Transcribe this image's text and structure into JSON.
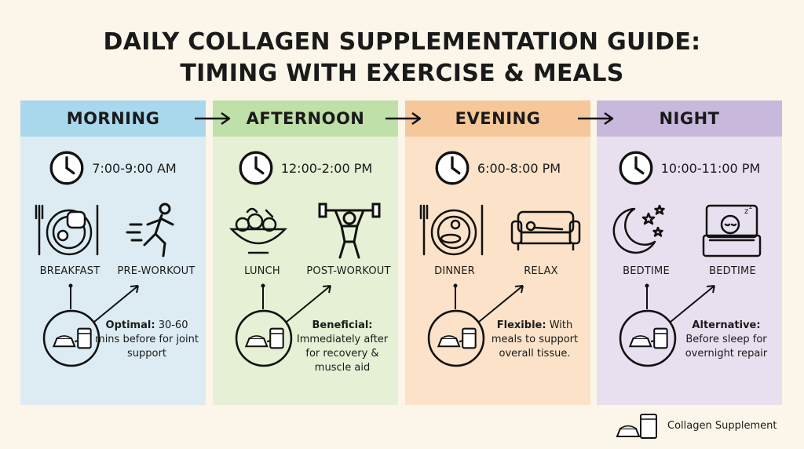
{
  "title": {
    "line1": "DAILY COLLAGEN SUPPLEMENTATION GUIDE:",
    "line2": "TIMING WITH EXERCISE & MEALS"
  },
  "panels": [
    {
      "heading": "MORNING",
      "time": "7:00-9:00 AM",
      "label_left": "BREAKFAST",
      "label_right": "PRE-WORKOUT",
      "note_bold": "Optimal:",
      "note_rest": "30-60 mins before for joint support",
      "header_color": "#a9d7ec",
      "body_color": "#dcecf2",
      "icon_left": "breakfast-icon",
      "icon_right": "running-person-icon"
    },
    {
      "heading": "AFTERNOON",
      "time": "12:00-2:00 PM",
      "label_left": "LUNCH",
      "label_right": "POST-WORKOUT",
      "note_bold": "Beneficial:",
      "note_rest": "Immediately after for recovery & muscle aid",
      "header_color": "#bfe0a8",
      "body_color": "#e5f0d4",
      "icon_left": "salad-bowl-icon",
      "icon_right": "weightlifter-icon"
    },
    {
      "heading": "EVENING",
      "time": "6:00-8:00 PM",
      "label_left": "DINNER",
      "label_right": "RELAX",
      "note_bold": "Flexible:",
      "note_rest": "With meals to support overall tissue.",
      "header_color": "#f6c79a",
      "body_color": "#fbe2c8",
      "icon_left": "dinner-plate-icon",
      "icon_right": "sofa-icon"
    },
    {
      "heading": "NIGHT",
      "time": "10:00-11:00 PM",
      "label_left": "BEDTIME",
      "label_right": "BEDTIME",
      "note_bold": "Alternative:",
      "note_rest": "Before sleep for overnight repair",
      "header_color": "#c8b8dc",
      "body_color": "#e8e0ef",
      "icon_left": "moon-stars-icon",
      "icon_right": "sleeping-person-icon"
    }
  ],
  "legend": {
    "label": "Collagen Supplement",
    "icon": "collagen-scoop-glass-icon"
  }
}
